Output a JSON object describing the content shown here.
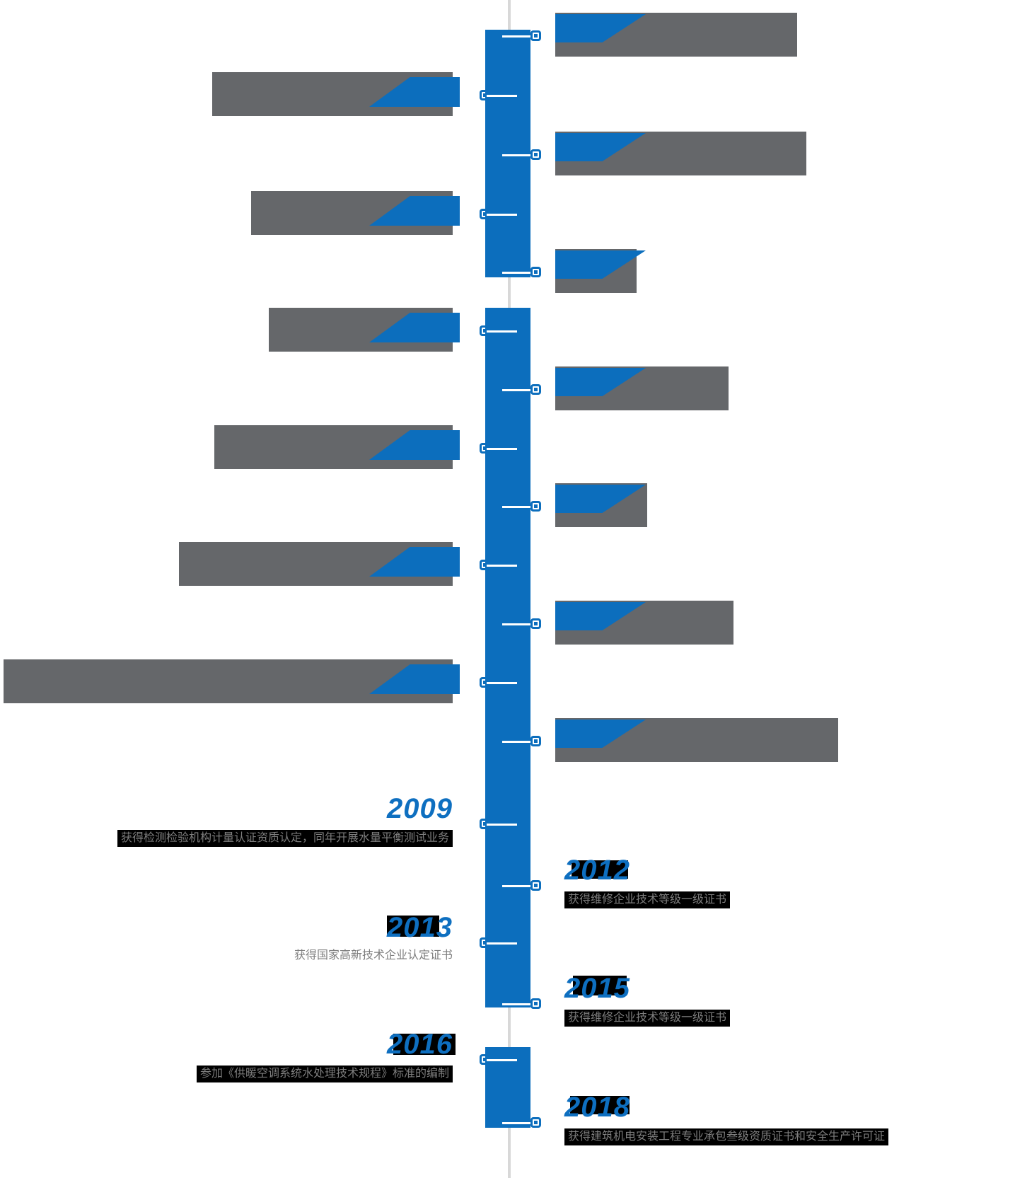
{
  "page": {
    "background": "#ffffff",
    "kind": "company-history-vertical-timeline"
  },
  "colors": {
    "accent_blue": "#0c6ebd",
    "year_blue": "#0e6fc0",
    "bar_gray": "#65676a",
    "line_gray": "#d8d8d8",
    "tick_white": "#ffffff",
    "desc_gray": "#7d7d7d",
    "highlight_black": "#000000"
  },
  "timeline": {
    "orientation": "vertical",
    "visible_years": [
      "2009",
      "2012",
      "2013",
      "2015",
      "2016",
      "2018"
    ],
    "items": [
      {
        "side": "right",
        "state": "covered"
      },
      {
        "side": "left",
        "state": "covered"
      },
      {
        "side": "right",
        "state": "covered"
      },
      {
        "side": "left",
        "state": "covered"
      },
      {
        "side": "right",
        "state": "covered"
      },
      {
        "side": "left",
        "state": "covered"
      },
      {
        "side": "right",
        "state": "covered"
      },
      {
        "side": "left",
        "state": "covered"
      },
      {
        "side": "right",
        "state": "covered"
      },
      {
        "side": "left",
        "state": "covered"
      },
      {
        "side": "right",
        "state": "covered"
      },
      {
        "side": "left",
        "state": "covered"
      },
      {
        "side": "right",
        "state": "covered"
      },
      {
        "side": "left",
        "state": "visible",
        "year": "2009",
        "description": "获得检测检验机构计量认证资质认定，同年开展水量平衡测试业务"
      },
      {
        "side": "right",
        "state": "visible",
        "year": "2012",
        "description": "获得维修企业技术等级一级证书"
      },
      {
        "side": "left",
        "state": "visible",
        "year": "2013",
        "description": "获得国家高新技术企业认定证书"
      },
      {
        "side": "right",
        "state": "visible",
        "year": "2015",
        "description": "获得维修企业技术等级一级证书"
      },
      {
        "side": "left",
        "state": "visible",
        "year": "2016",
        "description": "参加《供暖空调系统水处理技术规程》标准的编制"
      },
      {
        "side": "right",
        "state": "visible",
        "year": "2018",
        "description": "获得建筑机电安装工程专业承包叁级资质证书和安全生产许可证"
      }
    ]
  }
}
